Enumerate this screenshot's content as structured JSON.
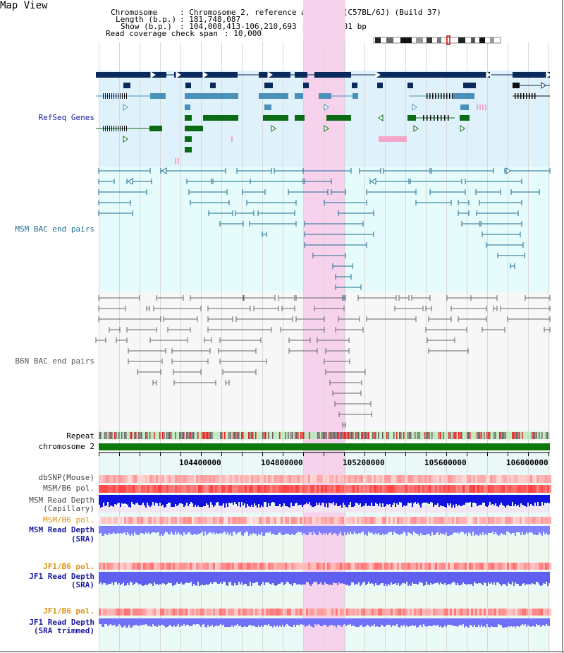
{
  "title": "Map View",
  "header": {
    "chromosome_key": "Chromosome",
    "chromosome_value": ": Chromosome 2, reference assembly (C57BL/6J) (Build 37)",
    "length_key": "Length (b.p.)",
    "length_value": ": 181,748,087",
    "show_key": "Show (b.p.)",
    "show_value": ": 104,008,413-106,210,693 : 2,202,281 bp",
    "span_key": "Read coverage check span",
    "span_value": ": 10,000"
  },
  "tracks": {
    "refseq": "RefSeq Genes",
    "msm_bac": "MSM BAC end pairs",
    "b6n_bac": "B6N BAC end pairs",
    "repeat": "Repeat",
    "chromosome": "chromosome 2",
    "dbsnp": "dbSNP(Mouse)",
    "msm_b6_pol": "MSM/B6 pol.",
    "msm_depth_cap_1": "MSM Read Depth",
    "msm_depth_cap_2": "(Capillary)",
    "msm_b6_pol_sra": "MSM/B6 pol.",
    "msm_depth_sra_1": "MSM Read Depth",
    "msm_depth_sra_2": "(SRA)",
    "jf1_b6_pol": "JF1/B6 pol.",
    "jf1_depth_1": "JF1 Read Depth",
    "jf1_depth_2": "(SRA)",
    "jf1_b6_pol_trim": "JF1/B6 pol.",
    "jf1_depth_trim_1": "JF1 Read Depth",
    "jf1_depth_trim_2": "(SRA trimmed)"
  },
  "axis": {
    "ticks": [
      "104400000",
      "104800000",
      "105200000",
      "105600000",
      "106000000"
    ]
  },
  "colors": {
    "refseq_dark": "#0b2a5c",
    "refseq_mid": "#4a90b8",
    "refseq_green": "#0b6b14",
    "msm_bac": "#1b6b8f",
    "b6n_bac": "#666666",
    "highlight": "#f7d2ec",
    "chromosome_bar": "#0b7a0b",
    "label_blue": "#1a1aa0",
    "label_teal": "#1b6b8f",
    "label_orange": "#e0900a"
  }
}
